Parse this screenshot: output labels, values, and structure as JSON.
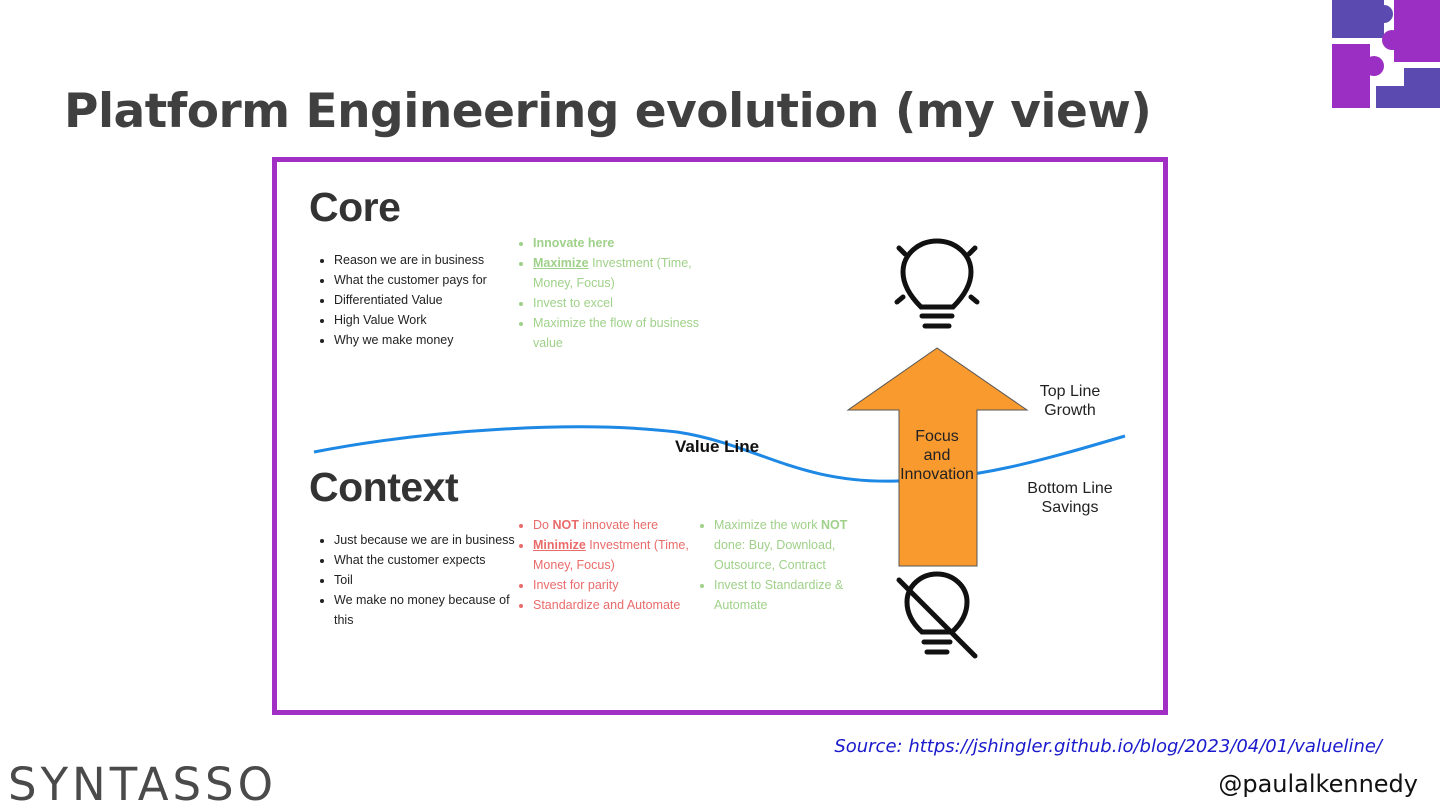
{
  "slide": {
    "title": "Platform Engineering evolution (my view)",
    "source": "Source: https://jshingler.github.io/blog/2023/04/01/valueline/",
    "handle": "@paulalkennedy",
    "brand": "SYNTASSO",
    "logo_icon": "puzzle-pieces-logo",
    "frame_color": "#a22fc3"
  },
  "diagram": {
    "core": {
      "heading": "Core",
      "traits": [
        "Reason we are in business",
        "What the customer pays for",
        "Differentiated Value",
        "High Value Work",
        "Why we make money"
      ],
      "guidance": {
        "innovate": "Innovate here",
        "maximize_word": "Maximize",
        "maximize_rest": " Investment (Time, Money, Focus)",
        "invest": "Invest to excel",
        "flow": "Maximize the flow of business value"
      }
    },
    "context": {
      "heading": "Context",
      "traits": [
        "Just because we are in business",
        "What the customer expects",
        "Toil",
        "We make no money because of this"
      ],
      "guidance": {
        "do": "Do ",
        "not": "NOT",
        "innovate_rest": " innovate here",
        "minimize_word": "Minimize",
        "minimize_rest": " Investment (Time, Money, Focus)",
        "parity": "Invest for parity",
        "standardize": "Standardize and Automate"
      },
      "alt_guidance": {
        "max_work": "Maximize the work ",
        "not": "NOT",
        "max_rest": " done: Buy, Download, Outsource, Contract",
        "invest": "Invest to Standardize & Automate"
      }
    },
    "value_line": "Value Line",
    "arrow_label": [
      "Focus",
      "and",
      "Innovation"
    ],
    "top_line": [
      "Top Line",
      "Growth"
    ],
    "bottom_line": [
      "Bottom Line",
      "Savings"
    ],
    "colors": {
      "green": "#9fd18a",
      "red": "#e96b6b",
      "value_line": "#1e88e5",
      "arrow": "#f99a2f"
    }
  }
}
